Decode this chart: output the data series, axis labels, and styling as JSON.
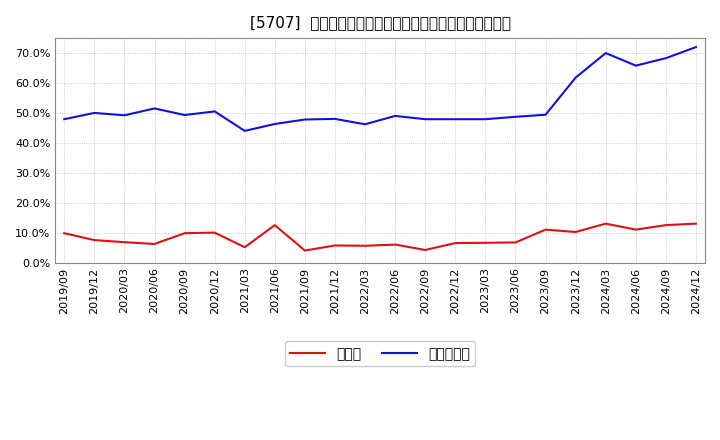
{
  "title": "[5707]  現頲金、有利子負債の総資産に対する比率の推移",
  "x_labels": [
    "2019/09",
    "2019/12",
    "2020/03",
    "2020/06",
    "2020/09",
    "2020/12",
    "2021/03",
    "2021/06",
    "2021/09",
    "2021/12",
    "2022/03",
    "2022/06",
    "2022/09",
    "2022/12",
    "2023/03",
    "2023/06",
    "2023/09",
    "2023/12",
    "2024/03",
    "2024/06",
    "2024/09",
    "2024/12"
  ],
  "cash": [
    0.098,
    0.075,
    0.068,
    0.062,
    0.098,
    0.1,
    0.051,
    0.125,
    0.04,
    0.057,
    0.056,
    0.06,
    0.042,
    0.065,
    0.066,
    0.067,
    0.11,
    0.102,
    0.13,
    0.11,
    0.125,
    0.13
  ],
  "debt": [
    0.479,
    0.5,
    0.492,
    0.515,
    0.493,
    0.505,
    0.44,
    0.463,
    0.478,
    0.48,
    0.462,
    0.49,
    0.479,
    0.479,
    0.479,
    0.487,
    0.494,
    0.618,
    0.7,
    0.658,
    0.683,
    0.72
  ],
  "cash_color": "#dd1111",
  "debt_color": "#1111dd",
  "legend_cash": "現頲金",
  "legend_debt": "有利子負債",
  "bg_color": "#ffffff",
  "plot_bg_color": "#ffffff",
  "grid_color": "#aaaaaa",
  "ylim": [
    0.0,
    0.75
  ],
  "yticks": [
    0.0,
    0.1,
    0.2,
    0.3,
    0.4,
    0.5,
    0.6,
    0.7
  ],
  "title_fontsize": 11,
  "tick_fontsize": 8,
  "legend_fontsize": 10
}
